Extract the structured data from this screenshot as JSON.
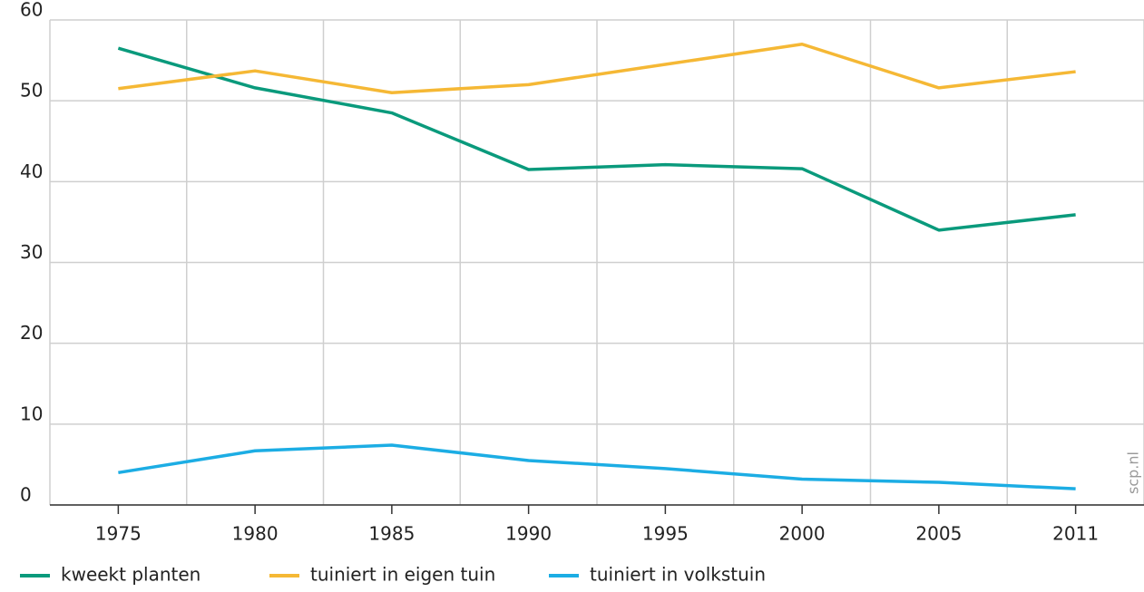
{
  "chart_data": {
    "type": "line",
    "categories": [
      "1975",
      "1980",
      "1985",
      "1990",
      "1995",
      "2000",
      "2005",
      "2011"
    ],
    "series": [
      {
        "name": "kweekt planten",
        "color": "#0a9a7c",
        "values": [
          56.5,
          51.6,
          48.5,
          41.5,
          42.1,
          41.6,
          34.0,
          35.9
        ]
      },
      {
        "name": "tuiniert in eigen tuin",
        "color": "#f5b835",
        "values": [
          51.5,
          53.7,
          51.0,
          52.0,
          54.5,
          57.0,
          51.6,
          53.6
        ]
      },
      {
        "name": "tuiniert in volkstuin",
        "color": "#1cade4",
        "values": [
          4.0,
          6.7,
          7.4,
          5.5,
          4.5,
          3.2,
          2.8,
          2.0
        ]
      }
    ],
    "ylim": [
      0,
      60
    ],
    "yticks": [
      0,
      10,
      20,
      30,
      40,
      50,
      60
    ],
    "grid": true,
    "source": "scp.nl"
  }
}
